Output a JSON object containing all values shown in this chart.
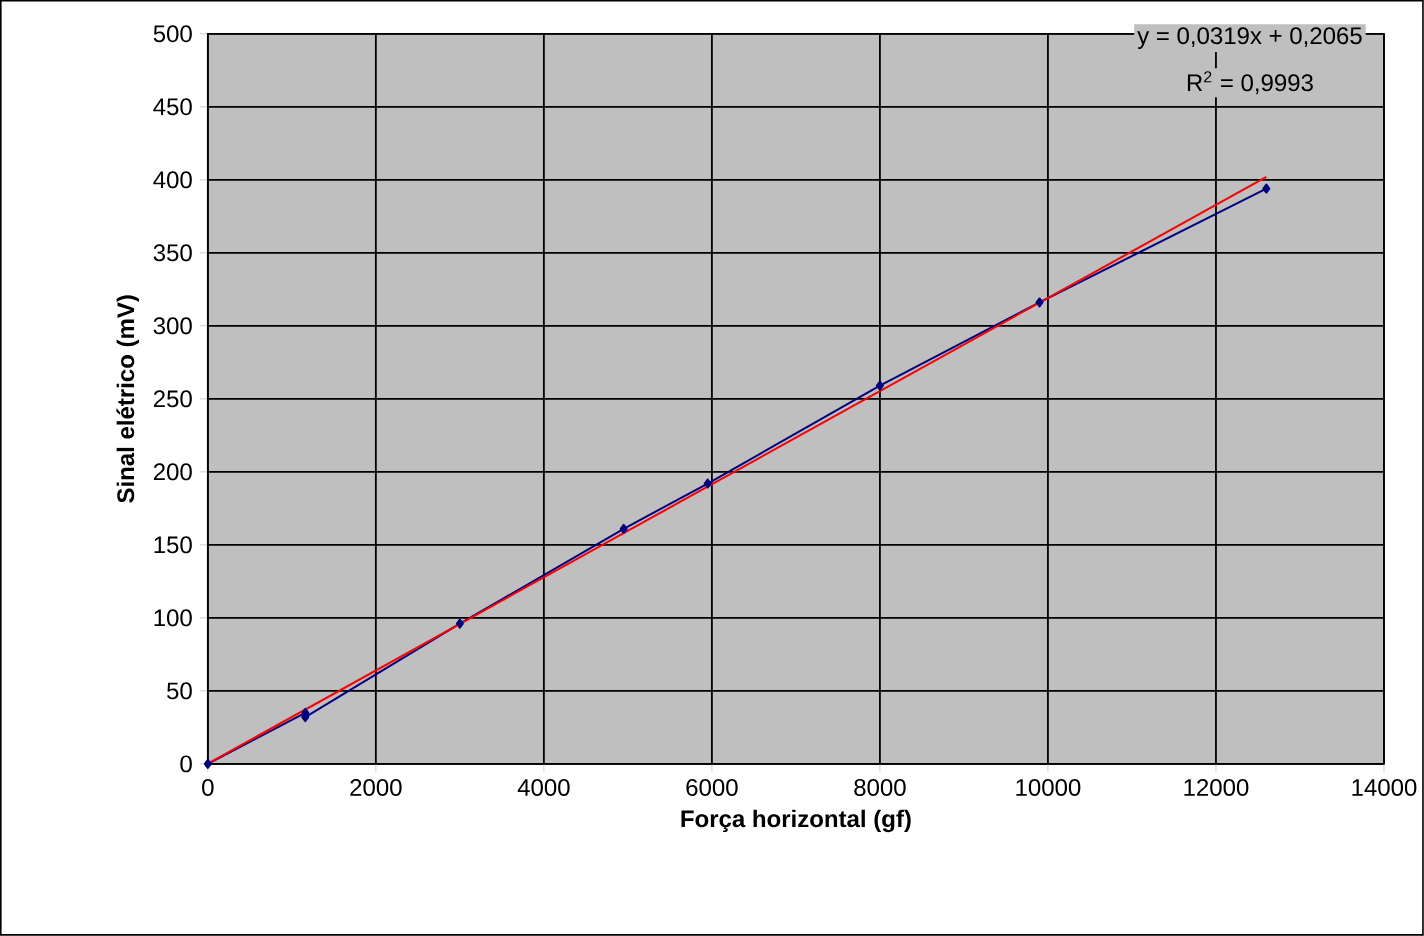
{
  "chart_data": {
    "type": "line",
    "xlabel": "Força horizontal (gf)",
    "ylabel": "Sinal elétrico (mV)",
    "xlim": [
      0,
      14000
    ],
    "xticks": [
      0,
      2000,
      4000,
      6000,
      8000,
      10000,
      12000,
      14000
    ],
    "ylim": [
      0,
      500
    ],
    "yticks": [
      0,
      50,
      100,
      150,
      200,
      250,
      300,
      350,
      400,
      450,
      500
    ],
    "grid": true,
    "series": [
      {
        "color": "#000080",
        "marker": "diamond",
        "x": [
          0,
          1160,
          1160,
          3000,
          4950,
          5950,
          8000,
          9900,
          12600
        ],
        "values": [
          0,
          35,
          32,
          96,
          161,
          192,
          259,
          316,
          394
        ]
      },
      {
        "color": "#ff0000",
        "marker": "none",
        "x": [
          0,
          12600
        ],
        "values": [
          0.2,
          402
        ]
      }
    ],
    "annotations": [
      "y = 0,0319x + 0,2065",
      "R$^{2}$ = 0,9993"
    ]
  }
}
